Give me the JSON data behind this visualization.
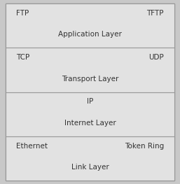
{
  "layers": [
    {
      "label": "Application Layer",
      "top_left": "FTP",
      "top_right": "TFTP",
      "ip_centered": false
    },
    {
      "label": "Transport Layer",
      "top_left": "TCP",
      "top_right": "UDP",
      "ip_centered": false
    },
    {
      "label": "Internet Layer",
      "top_left": "IP",
      "top_right": "",
      "ip_centered": true
    },
    {
      "label": "Link Layer",
      "top_left": "Ethernet",
      "top_right": "Token Ring",
      "ip_centered": false
    }
  ],
  "box_facecolor": "#e2e2e2",
  "box_edgecolor": "#999999",
  "outer_facecolor": "#d8d8d8",
  "label_color": "#333333",
  "protocol_color": "#333333",
  "label_fontsize": 7.5,
  "protocol_fontsize": 7.5,
  "background_color": "#c8c8c8"
}
